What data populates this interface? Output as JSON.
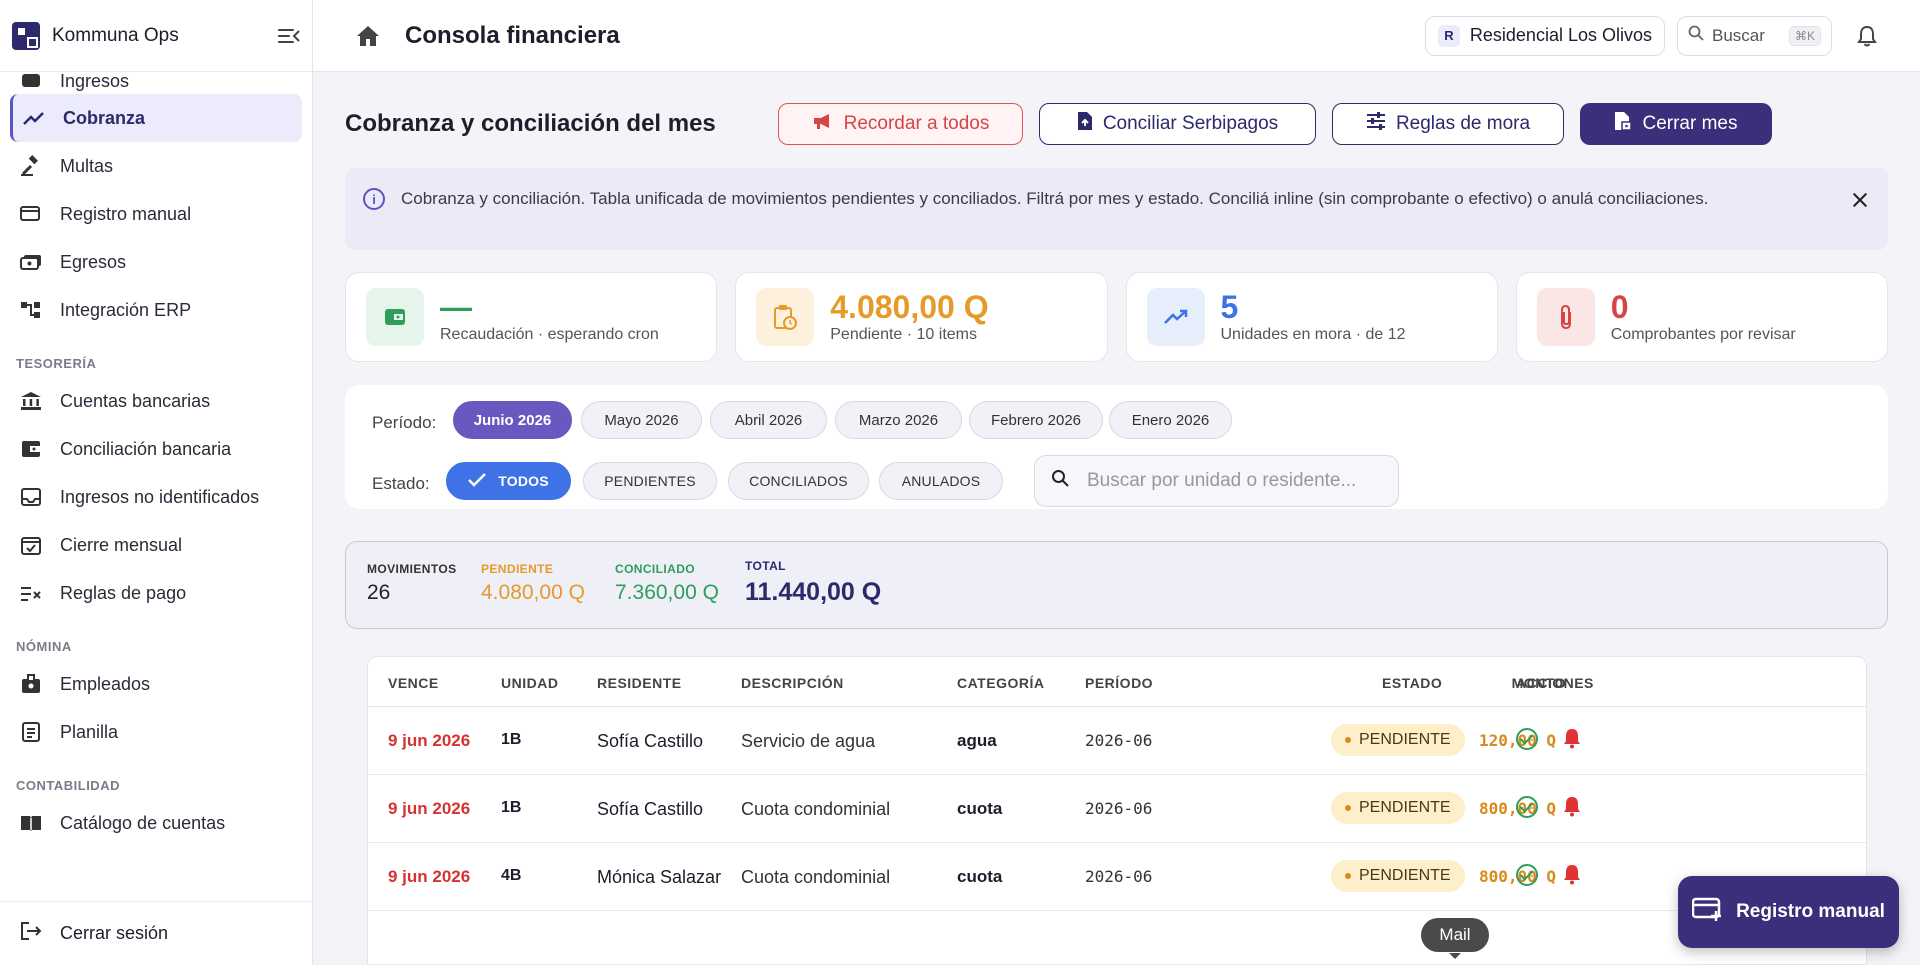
{
  "brand": {
    "name": "Kommuna Ops"
  },
  "sidebar": {
    "items_top": [
      {
        "label": "Ingresos",
        "icon": "income-icon"
      },
      {
        "label": "Cobranza",
        "icon": "trend-icon",
        "active": true
      },
      {
        "label": "Multas",
        "icon": "gavel-icon"
      },
      {
        "label": "Registro manual",
        "icon": "add-card-icon"
      },
      {
        "label": "Egresos",
        "icon": "cash-icon"
      },
      {
        "label": "Integración ERP",
        "icon": "integration-icon"
      }
    ],
    "section_tesoreria": "TESORERÍA",
    "items_tesoreria": [
      {
        "label": "Cuentas bancarias",
        "icon": "bank-icon"
      },
      {
        "label": "Conciliación bancaria",
        "icon": "wallet-icon"
      },
      {
        "label": "Ingresos no identificados",
        "icon": "inbox-icon"
      },
      {
        "label": "Cierre mensual",
        "icon": "calendar-check-icon"
      },
      {
        "label": "Reglas de pago",
        "icon": "rules-icon"
      }
    ],
    "section_nomina": "NÓMINA",
    "items_nomina": [
      {
        "label": "Empleados",
        "icon": "badge-icon"
      },
      {
        "label": "Planilla",
        "icon": "document-icon"
      }
    ],
    "section_contabilidad": "CONTABILIDAD",
    "items_contabilidad": [
      {
        "label": "Catálogo de cuentas",
        "icon": "book-icon"
      }
    ],
    "logout": "Cerrar sesión"
  },
  "topbar": {
    "title": "Consola financiera",
    "org_initial": "R",
    "org_name": "Residencial Los Olivos",
    "search_label": "Buscar",
    "search_kbd": "⌘K"
  },
  "main": {
    "section_title": "Cobranza y conciliación del mes",
    "buttons": {
      "remind": "Recordar a todos",
      "reconcile": "Conciliar Serbipagos",
      "late_rules": "Reglas de mora",
      "close_month": "Cerrar mes"
    },
    "banner": "Cobranza y conciliación. Tabla unificada de movimientos pendientes y conciliados. Filtrá por mes y estado. Conciliá inline (sin comprobante o efectivo) o anulá conciliaciones.",
    "kpis": [
      {
        "value": "—",
        "label": "Recaudación · esperando cron",
        "color": "#2f9e5a",
        "bg": "#e6f5ec"
      },
      {
        "value": "4.080,00 Q",
        "label": "Pendiente · 10 items",
        "color": "#e59a2a",
        "bg": "#fdf0dc"
      },
      {
        "value": "5",
        "label": "Unidades en mora · de 12",
        "color": "#3f72e6",
        "bg": "#e6eefc"
      },
      {
        "value": "0",
        "label": "Comprobantes por revisar",
        "color": "#d64545",
        "bg": "#fbe6e6"
      }
    ],
    "filters": {
      "period_label": "Período:",
      "periods": [
        "Junio 2026",
        "Mayo 2026",
        "Abril 2026",
        "Marzo 2026",
        "Febrero 2026",
        "Enero 2026"
      ],
      "selected_period": "Junio 2026",
      "state_label": "Estado:",
      "states": [
        "TODOS",
        "PENDIENTES",
        "CONCILIADOS",
        "ANULADOS"
      ],
      "selected_state": "TODOS",
      "search_placeholder": "Buscar por unidad o residente..."
    },
    "summary": {
      "movimientos_label": "MOVIMIENTOS",
      "movimientos": "26",
      "pendiente_label": "PENDIENTE",
      "pendiente": "4.080,00 Q",
      "conciliado_label": "CONCILIADO",
      "conciliado": "7.360,00 Q",
      "total_label": "TOTAL",
      "total": "11.440,00 Q"
    },
    "table": {
      "headers": [
        "VENCE",
        "UNIDAD",
        "RESIDENTE",
        "DESCRIPCIÓN",
        "CATEGORÍA",
        "PERÍODO",
        "MONTO",
        "ESTADO",
        "ACCIONES"
      ],
      "rows": [
        {
          "vence": "9 jun 2026",
          "unidad": "1B",
          "residente": "Sofía Castillo",
          "descripcion": "Servicio de agua",
          "categoria": "agua",
          "periodo": "2026-06",
          "monto": "120,00 Q",
          "estado": "PENDIENTE"
        },
        {
          "vence": "9 jun 2026",
          "unidad": "1B",
          "residente": "Sofía Castillo",
          "descripcion": "Cuota condominial",
          "categoria": "cuota",
          "periodo": "2026-06",
          "monto": "800,00 Q",
          "estado": "PENDIENTE"
        },
        {
          "vence": "9 jun 2026",
          "unidad": "4B",
          "residente": "Mónica Salazar",
          "descripcion": "Cuota condominial",
          "categoria": "cuota",
          "periodo": "2026-06",
          "monto": "800,00 Q",
          "estado": "PENDIENTE"
        }
      ]
    },
    "fab": "Registro manual",
    "tooltip": "Mail"
  }
}
